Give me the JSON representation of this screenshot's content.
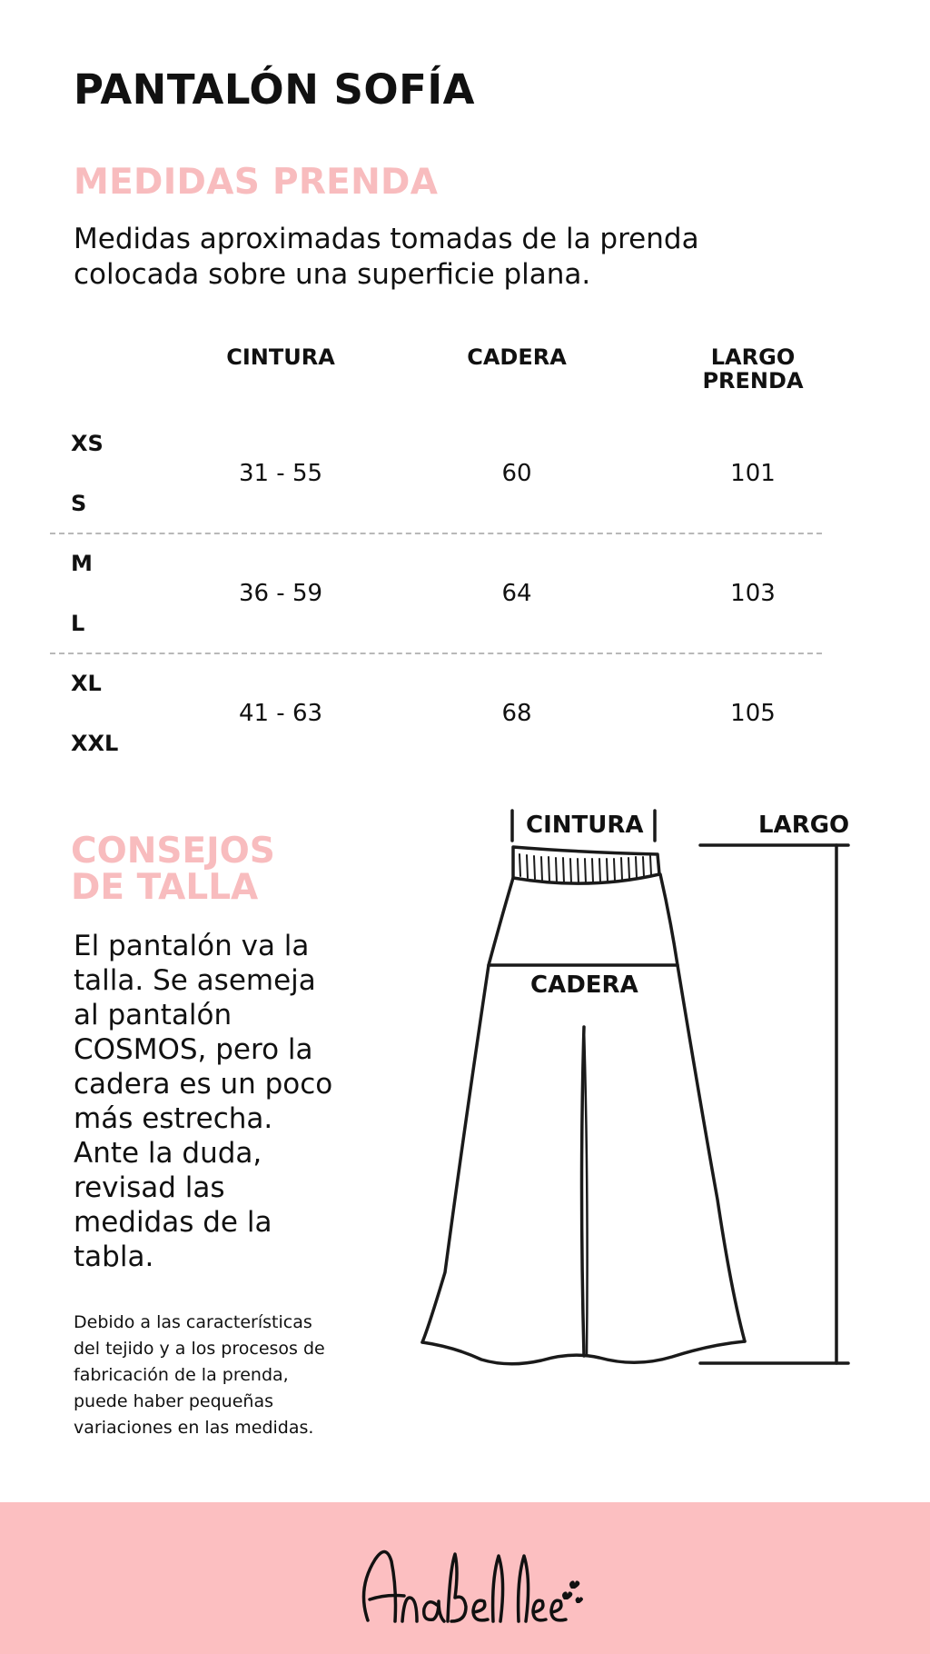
{
  "product": {
    "title": "PANTALÓN SOFÍA"
  },
  "measurements": {
    "heading": "MEDIDAS PRENDA",
    "description": "Medidas aproximadas tomadas de la prenda colocada sobre una superficie plana.",
    "columns": [
      "CINTURA",
      "CADERA",
      "LARGO\nPRENDA"
    ],
    "rows": [
      {
        "sizes": [
          "XS",
          "S"
        ],
        "cintura": "31 - 55",
        "cadera": "60",
        "largo": "101"
      },
      {
        "sizes": [
          "M",
          "L"
        ],
        "cintura": "36 - 59",
        "cadera": "64",
        "largo": "103"
      },
      {
        "sizes": [
          "XL",
          "XXL"
        ],
        "cintura": "41 - 63",
        "cadera": "68",
        "largo": "105"
      }
    ]
  },
  "tips": {
    "heading": "CONSEJOS\nDE TALLA",
    "body": "El pantalón va la\ntalla. Se asemeja\nal pantalón\nCOSMOS, pero la\ncadera es un poco\nmás estrecha.\nAnte la duda,\nrevisad las\nmedidas de la\ntabla.",
    "note": "Debido a las características\ndel tejido y a los procesos de\nfabricación de la prenda,\npuede haber pequeñas\nvariaciones en las medidas."
  },
  "diagram": {
    "waist_label": "CINTURA",
    "hip_label": "CADERA",
    "length_label": "LARGO",
    "line_color": "#1a1a1a"
  },
  "brand": {
    "logo_text": "Anabel lee",
    "footer_color": "#fcbfc1",
    "accent_color": "#f8bcbe"
  }
}
